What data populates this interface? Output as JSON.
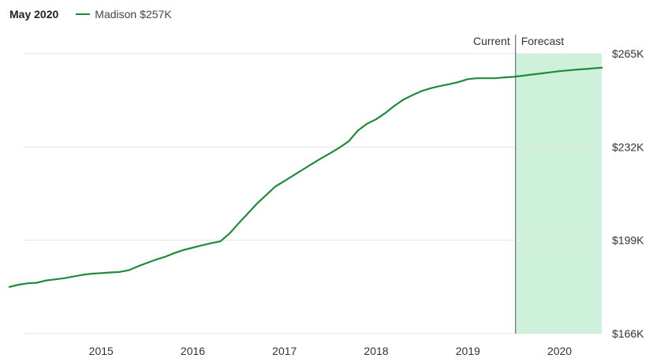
{
  "header": {
    "date": "May 2020",
    "legend_name": "Madison",
    "legend_value": "$257K"
  },
  "colors": {
    "line": "#1f8a3a",
    "forecast_fill": "#cdf1da",
    "grid": "#e6e6e6",
    "divider": "#555555"
  },
  "chart_data": {
    "type": "line",
    "title": "",
    "xlabel": "",
    "ylabel": "",
    "ylim": [
      166,
      265
    ],
    "y_ticks": [
      {
        "value": 265,
        "label": "$265K"
      },
      {
        "value": 232,
        "label": "$232K"
      },
      {
        "value": 199,
        "label": "$199K"
      },
      {
        "value": 166,
        "label": "$166K"
      }
    ],
    "x_range": [
      2014.0,
      2020.46
    ],
    "x_ticks": [
      {
        "value": 2015.0,
        "label": "2015"
      },
      {
        "value": 2016.0,
        "label": "2016"
      },
      {
        "value": 2017.0,
        "label": "2017"
      },
      {
        "value": 2018.0,
        "label": "2018"
      },
      {
        "value": 2019.0,
        "label": "2019"
      },
      {
        "value": 2020.0,
        "label": "2020"
      }
    ],
    "grid": true,
    "current_label": "Current",
    "forecast_label": "Forecast",
    "forecast_start": 2019.52,
    "series": [
      {
        "name": "Madison",
        "x": [
          2014.0,
          2014.1,
          2014.2,
          2014.3,
          2014.4,
          2014.5,
          2014.6,
          2014.7,
          2014.8,
          2014.9,
          2015.0,
          2015.1,
          2015.2,
          2015.3,
          2015.4,
          2015.5,
          2015.6,
          2015.7,
          2015.8,
          2015.9,
          2016.0,
          2016.1,
          2016.2,
          2016.3,
          2016.4,
          2016.5,
          2016.6,
          2016.7,
          2016.8,
          2016.9,
          2017.0,
          2017.1,
          2017.2,
          2017.3,
          2017.4,
          2017.5,
          2017.6,
          2017.7,
          2017.8,
          2017.9,
          2018.0,
          2018.1,
          2018.2,
          2018.3,
          2018.4,
          2018.5,
          2018.6,
          2018.7,
          2018.8,
          2018.9,
          2019.0,
          2019.1,
          2019.2,
          2019.3,
          2019.4,
          2019.5,
          2019.6,
          2019.7,
          2019.8,
          2019.9,
          2020.0,
          2020.1,
          2020.2,
          2020.3,
          2020.4,
          2020.46
        ],
        "y": [
          182.5,
          183.3,
          183.8,
          184.0,
          184.8,
          185.2,
          185.6,
          186.2,
          186.8,
          187.2,
          187.4,
          187.6,
          187.8,
          188.4,
          189.8,
          191.0,
          192.2,
          193.2,
          194.5,
          195.6,
          196.4,
          197.2,
          198.0,
          198.6,
          201.4,
          205.0,
          208.5,
          212.0,
          215.0,
          218.0,
          220.0,
          222.0,
          224.0,
          226.0,
          228.0,
          229.8,
          231.8,
          234.0,
          237.8,
          240.2,
          241.8,
          244.0,
          246.6,
          248.8,
          250.4,
          251.8,
          252.8,
          253.6,
          254.2,
          255.0,
          256.0,
          256.3,
          256.3,
          256.3,
          256.6,
          256.8,
          257.2,
          257.6,
          258.0,
          258.4,
          258.8,
          259.1,
          259.4,
          259.6,
          259.9,
          260.0
        ]
      }
    ]
  }
}
